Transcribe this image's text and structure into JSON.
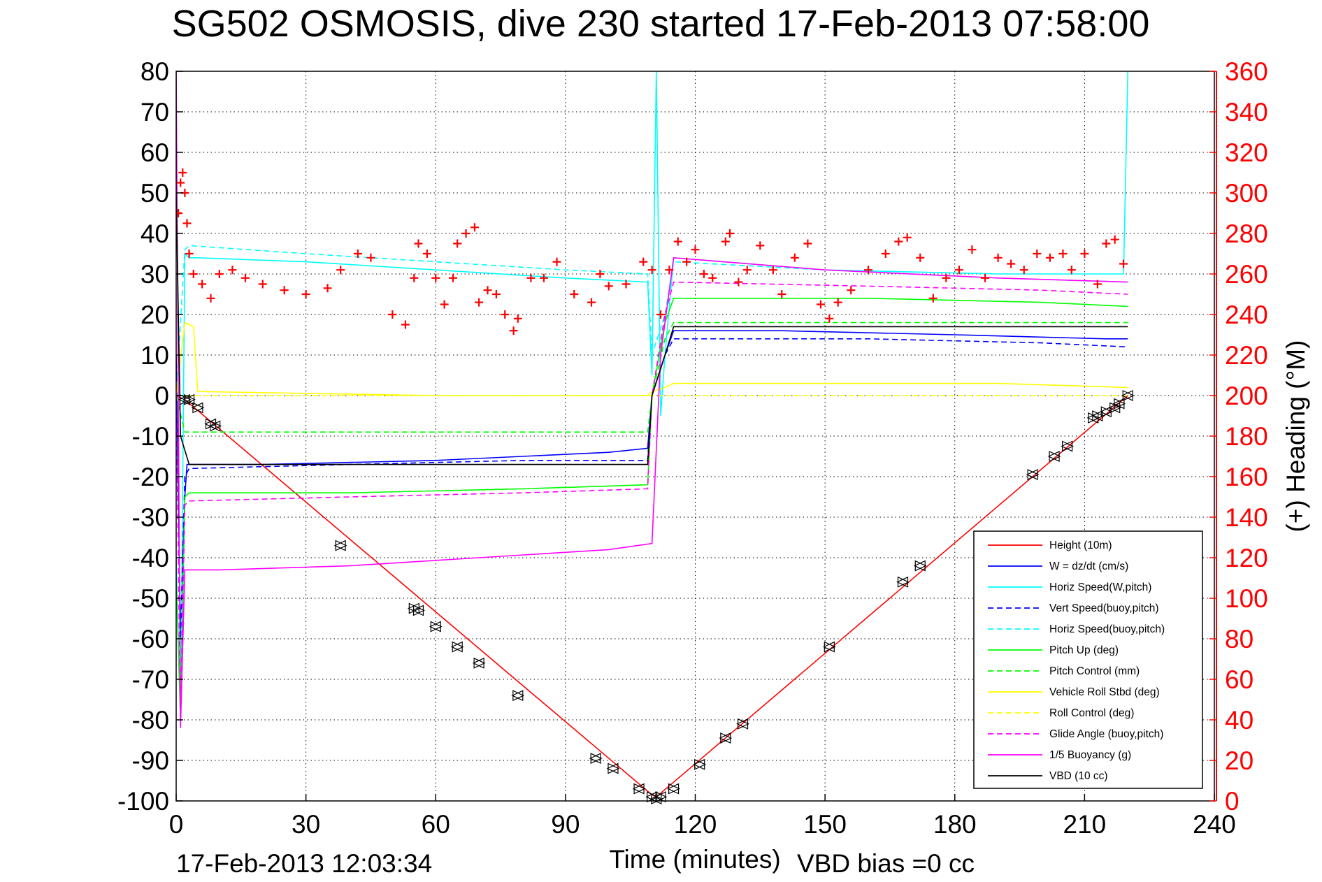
{
  "chart_data": {
    "type": "line",
    "title": "SG502 OSMOSIS, dive 230 started 17-Feb-2013 07:58:00",
    "xlabel": "Time (minutes)",
    "ylabel_right": "(+) Heading (°M)",
    "xlim": [
      0,
      240
    ],
    "ylim": [
      -100,
      80
    ],
    "ylim_right": [
      0,
      360
    ],
    "x_ticks": [
      "0",
      "30",
      "60",
      "90",
      "120",
      "150",
      "180",
      "210",
      "240"
    ],
    "y_ticks": [
      "-100",
      "-90",
      "-80",
      "-70",
      "-60",
      "-50",
      "-40",
      "-30",
      "-20",
      "-10",
      "0",
      "10",
      "20",
      "30",
      "40",
      "50",
      "60",
      "70",
      "80"
    ],
    "y_right_ticks": [
      "0",
      "20",
      "40",
      "60",
      "80",
      "100",
      "120",
      "140",
      "160",
      "180",
      "200",
      "220",
      "240",
      "260",
      "280",
      "300",
      "320",
      "340",
      "360"
    ],
    "grid": true,
    "legend_position": "bottom-right",
    "footer_left": "17-Feb-2013 12:03:34",
    "footer_right": "VBD bias =0 cc",
    "colors": {
      "height": "#ff0000",
      "w": "#0000ff",
      "hspeed": "#00ffff",
      "pitch": "#00ff00",
      "roll": "#ffff00",
      "glide": "#ff00ff",
      "buoyancy": "#ff00ff",
      "vbd": "#000000",
      "heading_axis": "#ff0000"
    },
    "series": [
      {
        "name": "Height (10m)",
        "color": "#ff0000",
        "dash": "solid",
        "x": [
          0,
          2,
          110,
          111,
          220
        ],
        "y": [
          0,
          -1,
          -98.5,
          -99,
          0
        ]
      },
      {
        "name": "W = dz/dt (cm/s)",
        "color": "#0000ff",
        "dash": "solid",
        "x": [
          0,
          1,
          2,
          2.5,
          3,
          20,
          60,
          100,
          109,
          110,
          113,
          115,
          140,
          180,
          215,
          220
        ],
        "y": [
          10,
          -60,
          -25,
          -17,
          -17,
          -17,
          -16,
          -14,
          -13,
          0,
          10,
          16,
          16,
          15,
          14,
          14
        ]
      },
      {
        "name": "Horiz Speed(W,pitch)",
        "color": "#00ffff",
        "dash": "solid",
        "x": [
          0,
          1,
          2,
          3,
          5,
          30,
          60,
          90,
          109,
          110,
          111,
          112,
          113,
          115,
          150,
          190,
          219,
          220
        ],
        "y": [
          -40,
          -80,
          35,
          34,
          34,
          33,
          31,
          29,
          28,
          5,
          80,
          -5,
          10,
          34,
          31,
          30,
          30,
          80
        ]
      },
      {
        "name": "Vert Speed(buoy,pitch)",
        "color": "#0000ff",
        "dash": "dashed",
        "x": [
          0,
          1,
          2,
          3,
          40,
          80,
          109,
          110,
          113,
          115,
          160,
          200,
          220
        ],
        "y": [
          0,
          -60,
          -20,
          -18,
          -17,
          -16,
          -16,
          0,
          10,
          14,
          14,
          13,
          12
        ]
      },
      {
        "name": "Horiz Speed(buoy,pitch)",
        "color": "#00ffff",
        "dash": "dashed",
        "x": [
          0,
          2,
          3,
          30,
          60,
          90,
          109,
          110,
          113,
          115,
          150,
          190,
          220
        ],
        "y": [
          0,
          36,
          37,
          35,
          33,
          31,
          30,
          10,
          20,
          33,
          31,
          29,
          28
        ]
      },
      {
        "name": "Pitch Up (deg)",
        "color": "#00ff00",
        "dash": "solid",
        "x": [
          0,
          1,
          2,
          3,
          40,
          80,
          109,
          110,
          113,
          115,
          160,
          200,
          220
        ],
        "y": [
          -45,
          -80,
          -25,
          -24,
          -24,
          -23,
          -22,
          0,
          18,
          24,
          24,
          23,
          22
        ]
      },
      {
        "name": "Pitch Control (mm)",
        "color": "#00ff00",
        "dash": "dashed",
        "x": [
          0,
          2,
          3,
          109,
          110,
          113,
          115,
          220
        ],
        "y": [
          0,
          -9,
          -9,
          -9,
          0,
          14,
          18,
          18
        ]
      },
      {
        "name": "Vehicle Roll Stbd (deg)",
        "color": "#ffff00",
        "dash": "solid",
        "x": [
          0,
          2,
          4,
          5,
          60,
          109,
          110,
          113,
          115,
          150,
          190,
          220
        ],
        "y": [
          0,
          18,
          17,
          1,
          0,
          0,
          1,
          2,
          3,
          3,
          3,
          2
        ]
      },
      {
        "name": "Roll Control (deg)",
        "color": "#ffff00",
        "dash": "dashed",
        "x": [
          0,
          220
        ],
        "y": [
          0,
          0
        ]
      },
      {
        "name": "Glide Angle (buoy,pitch)",
        "color": "#ff00ff",
        "dash": "dashed",
        "x": [
          0,
          1,
          2,
          3,
          40,
          80,
          109,
          110,
          113,
          115,
          160,
          200,
          220
        ],
        "y": [
          0,
          -80,
          -27,
          -26,
          -25,
          -24,
          -23,
          0,
          20,
          28,
          27,
          26,
          25
        ]
      },
      {
        "name": "1/5 Buoyancy (g)",
        "color": "#ff00ff",
        "dash": "solid",
        "x": [
          0,
          1,
          2,
          3,
          10,
          40,
          70,
          100,
          110,
          112,
          115,
          150,
          190,
          220
        ],
        "y": [
          80,
          -82,
          -43,
          -43,
          -43,
          -42,
          -40,
          -38,
          -36.5,
          10,
          34,
          31,
          29,
          28
        ]
      },
      {
        "name": "VBD (10 cc)",
        "color": "#000000",
        "dash": "solid",
        "x": [
          0,
          1,
          3,
          60,
          109,
          110,
          113,
          115,
          220
        ],
        "y": [
          50,
          -10,
          -17,
          -17,
          -17,
          0,
          10,
          17,
          17
        ]
      }
    ],
    "heading_series": {
      "name": "Heading (+)",
      "color": "#ff0000",
      "marker": "+",
      "axis": "right",
      "x": [
        0.5,
        1,
        1.5,
        2,
        2.5,
        3,
        4,
        6,
        8,
        10,
        13,
        16,
        20,
        25,
        30,
        35,
        38,
        42,
        45,
        50,
        53,
        55,
        56,
        58,
        60,
        62,
        64,
        65,
        67,
        69,
        70,
        72,
        74,
        76,
        78,
        79,
        82,
        85,
        88,
        92,
        96,
        98,
        100,
        104,
        108,
        110,
        112,
        114,
        116,
        118,
        120,
        122,
        124,
        127,
        128,
        130,
        132,
        135,
        138,
        140,
        143,
        146,
        149,
        151,
        153,
        156,
        160,
        164,
        167,
        169,
        172,
        175,
        178,
        181,
        184,
        187,
        190,
        193,
        196,
        199,
        202,
        205,
        207,
        210,
        213,
        215,
        217,
        219
      ],
      "y": [
        290,
        305,
        310,
        300,
        285,
        270,
        260,
        255,
        248,
        260,
        262,
        258,
        255,
        252,
        250,
        253,
        262,
        270,
        268,
        240,
        235,
        258,
        275,
        270,
        258,
        245,
        258,
        275,
        280,
        283,
        246,
        252,
        250,
        240,
        232,
        238,
        258,
        258,
        266,
        250,
        246,
        260,
        254,
        255,
        266,
        262,
        240,
        262,
        276,
        266,
        272,
        260,
        258,
        276,
        280,
        256,
        262,
        274,
        262,
        250,
        268,
        275,
        245,
        238,
        246,
        252,
        262,
        270,
        276,
        278,
        268,
        248,
        258,
        262,
        272,
        258,
        268,
        265,
        262,
        270,
        268,
        270,
        262,
        270,
        255,
        275,
        277,
        265
      ]
    },
    "dive_markers": {
      "name": "Height markers",
      "x": [
        2,
        3,
        5,
        8,
        9,
        38,
        55,
        56,
        60,
        65,
        70,
        79,
        97,
        101,
        107,
        110,
        111,
        112,
        115,
        121,
        127,
        131,
        151,
        168,
        172,
        198,
        203,
        206,
        212,
        213,
        215,
        217,
        218,
        220
      ],
      "y": [
        -1,
        -1,
        -3,
        -7,
        -7.5,
        -37,
        -52.5,
        -53,
        -57,
        -62,
        -66,
        -74,
        -89.5,
        -92,
        -97,
        -99,
        -99.5,
        -99,
        -97,
        -91,
        -84.5,
        -81,
        -62,
        -46,
        -42,
        -19.5,
        -15,
        -12.5,
        -5.5,
        -5,
        -4,
        -3,
        -2,
        0
      ]
    }
  }
}
